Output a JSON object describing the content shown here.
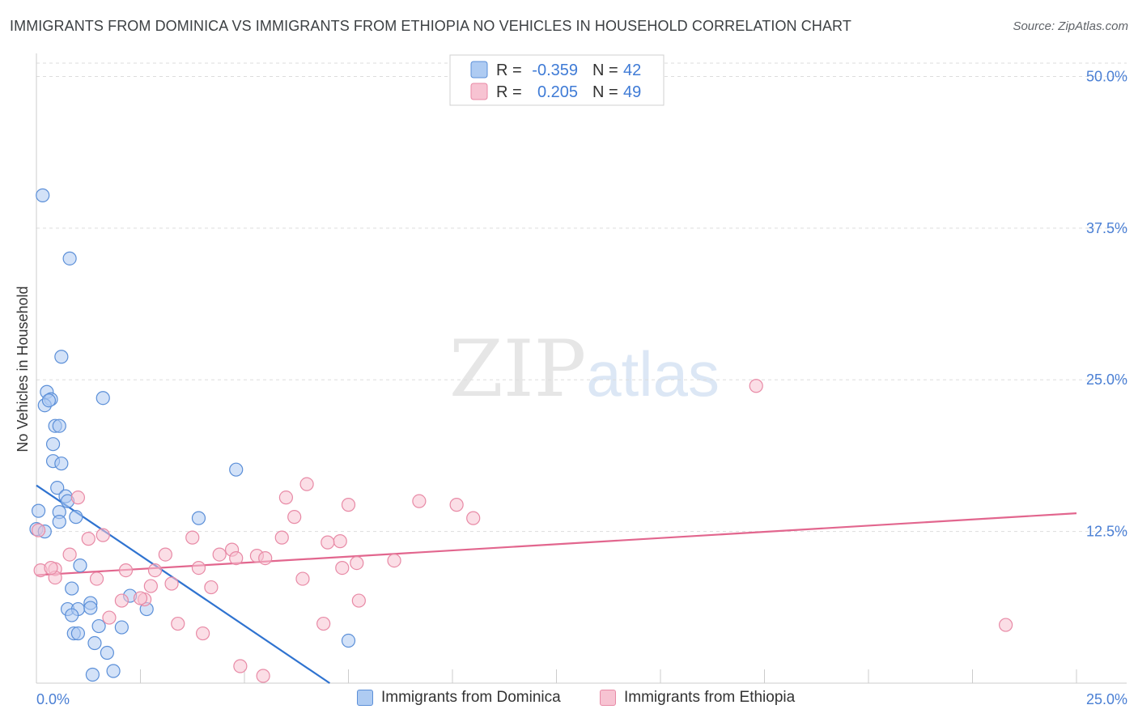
{
  "title": "IMMIGRANTS FROM DOMINICA VS IMMIGRANTS FROM ETHIOPIA NO VEHICLES IN HOUSEHOLD CORRELATION CHART",
  "source": "Source: ZipAtlas.com",
  "watermark": {
    "zip": "ZIP",
    "atlas": "atlas"
  },
  "legend": {
    "r_label": "R =",
    "n_label": "N =",
    "items": [
      {
        "name": "Immigrants from Dominica",
        "r": "-0.359",
        "n": "42"
      },
      {
        "name": "Immigrants from Ethiopia",
        "r": "0.205",
        "n": "49"
      }
    ]
  },
  "colors": {
    "dominica_fill": "#aecbf2",
    "dominica_stroke": "#5b8fd8",
    "dominica_line": "#2f73d0",
    "ethiopia_fill": "#f7c3d2",
    "ethiopia_stroke": "#e88aa6",
    "ethiopia_line": "#e2668e",
    "tick_label": "#4a7fd4"
  },
  "chart_data": {
    "type": "scatter",
    "title": "IMMIGRANTS FROM DOMINICA VS IMMIGRANTS FROM ETHIOPIA NO VEHICLES IN HOUSEHOLD CORRELATION CHART",
    "xlabel": "",
    "ylabel": "No Vehicles in Household",
    "xlim": [
      0,
      25
    ],
    "ylim": [
      0,
      51.5
    ],
    "x_tick_labels": [
      "0.0%",
      "25.0%"
    ],
    "y_ticks": [
      12.5,
      25.0,
      37.5,
      50.0
    ],
    "y_tick_labels": [
      "12.5%",
      "25.0%",
      "37.5%",
      "50.0%"
    ],
    "grid": true,
    "series": [
      {
        "name": "Immigrants from Dominica",
        "points": [
          [
            0.15,
            40.2
          ],
          [
            0.8,
            35.0
          ],
          [
            0.6,
            26.9
          ],
          [
            0.25,
            24.0
          ],
          [
            0.35,
            23.4
          ],
          [
            0.2,
            22.9
          ],
          [
            0.3,
            23.3
          ],
          [
            1.6,
            23.5
          ],
          [
            0.45,
            21.2
          ],
          [
            0.55,
            21.2
          ],
          [
            0.4,
            19.7
          ],
          [
            0.4,
            18.3
          ],
          [
            0.6,
            18.1
          ],
          [
            4.8,
            17.6
          ],
          [
            0.5,
            16.1
          ],
          [
            0.7,
            15.4
          ],
          [
            0.75,
            15.0
          ],
          [
            0.05,
            14.2
          ],
          [
            0.55,
            14.1
          ],
          [
            0.95,
            13.7
          ],
          [
            3.9,
            13.6
          ],
          [
            0.0,
            12.7
          ],
          [
            0.2,
            12.5
          ],
          [
            1.05,
            9.7
          ],
          [
            0.85,
            7.8
          ],
          [
            2.25,
            7.2
          ],
          [
            1.3,
            6.6
          ],
          [
            0.75,
            6.1
          ],
          [
            1.0,
            6.1
          ],
          [
            1.3,
            6.2
          ],
          [
            2.65,
            6.1
          ],
          [
            0.85,
            5.6
          ],
          [
            1.5,
            4.7
          ],
          [
            2.05,
            4.6
          ],
          [
            0.9,
            4.1
          ],
          [
            1.0,
            4.1
          ],
          [
            1.4,
            3.3
          ],
          [
            7.5,
            3.5
          ],
          [
            1.7,
            2.5
          ],
          [
            1.35,
            0.7
          ],
          [
            1.85,
            1.0
          ],
          [
            0.55,
            13.3
          ]
        ],
        "trendline": {
          "x": [
            0,
            7.05
          ],
          "y": [
            16.3,
            0
          ]
        }
      },
      {
        "name": "Immigrants from Ethiopia",
        "points": [
          [
            17.3,
            24.5
          ],
          [
            6.5,
            16.4
          ],
          [
            6.0,
            15.3
          ],
          [
            9.2,
            15.0
          ],
          [
            7.5,
            14.7
          ],
          [
            10.1,
            14.7
          ],
          [
            1.0,
            15.3
          ],
          [
            6.2,
            13.7
          ],
          [
            10.5,
            13.6
          ],
          [
            0.05,
            12.6
          ],
          [
            1.6,
            12.2
          ],
          [
            3.75,
            12.0
          ],
          [
            5.9,
            12.0
          ],
          [
            7.3,
            11.7
          ],
          [
            1.25,
            11.9
          ],
          [
            7.0,
            11.6
          ],
          [
            4.7,
            11.0
          ],
          [
            3.1,
            10.6
          ],
          [
            4.4,
            10.6
          ],
          [
            4.8,
            10.3
          ],
          [
            5.3,
            10.5
          ],
          [
            5.5,
            10.3
          ],
          [
            0.8,
            10.6
          ],
          [
            7.7,
            9.9
          ],
          [
            8.6,
            10.1
          ],
          [
            0.1,
            9.3
          ],
          [
            0.45,
            9.4
          ],
          [
            2.15,
            9.3
          ],
          [
            2.85,
            9.3
          ],
          [
            3.9,
            9.5
          ],
          [
            7.35,
            9.5
          ],
          [
            0.45,
            8.7
          ],
          [
            1.45,
            8.6
          ],
          [
            6.4,
            8.6
          ],
          [
            2.75,
            8.0
          ],
          [
            3.25,
            8.2
          ],
          [
            4.2,
            7.9
          ],
          [
            2.05,
            6.8
          ],
          [
            2.6,
            6.9
          ],
          [
            7.75,
            6.8
          ],
          [
            1.75,
            5.4
          ],
          [
            3.4,
            4.9
          ],
          [
            6.9,
            4.9
          ],
          [
            23.3,
            4.8
          ],
          [
            4.0,
            4.1
          ],
          [
            4.9,
            1.4
          ],
          [
            5.45,
            0.6
          ],
          [
            0.35,
            9.5
          ],
          [
            2.5,
            7.0
          ]
        ],
        "trendline": {
          "x": [
            0,
            25
          ],
          "y": [
            8.9,
            14.0
          ]
        }
      }
    ]
  }
}
